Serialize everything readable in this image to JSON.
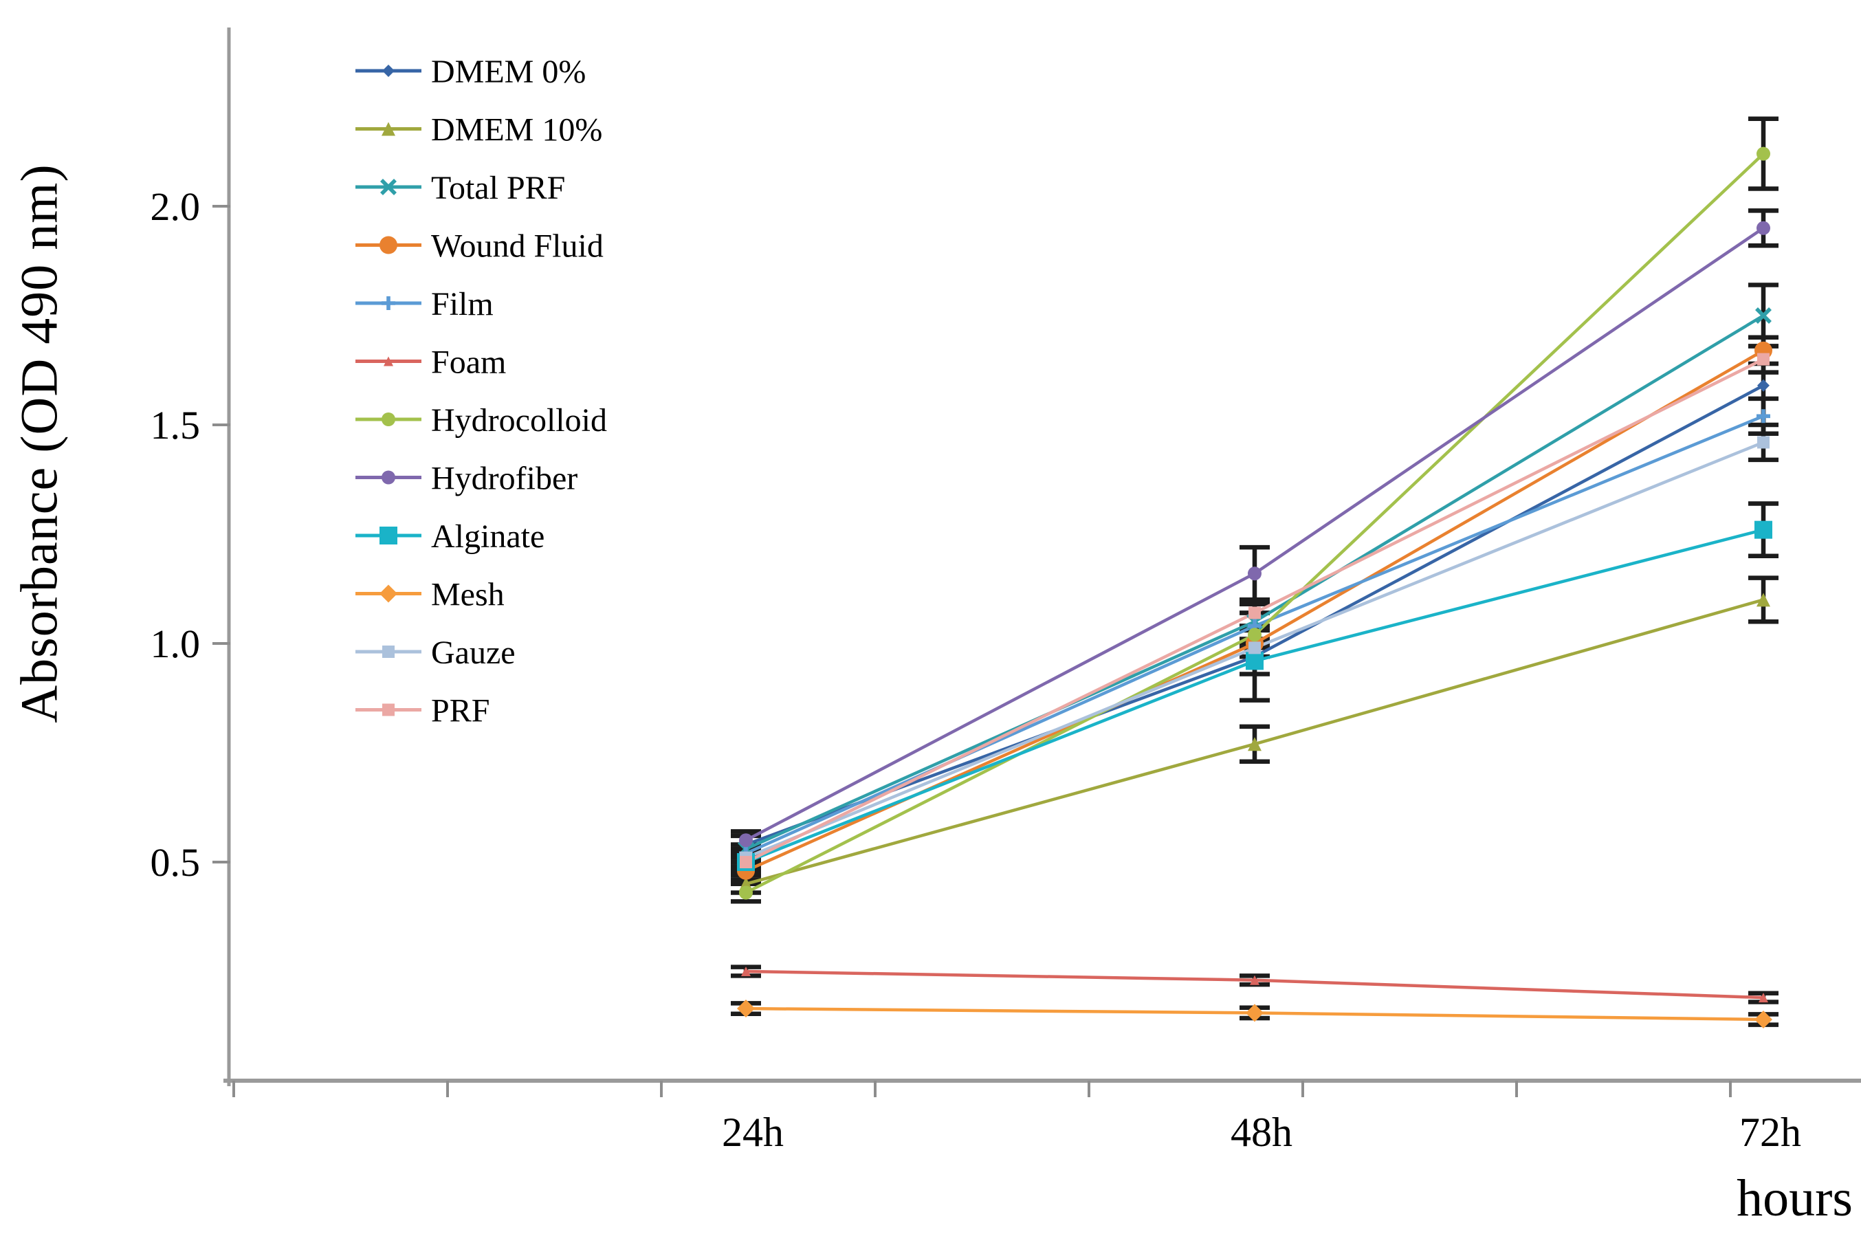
{
  "chart_data": {
    "type": "line",
    "title": "",
    "xlabel": "hours",
    "ylabel": "Absorbance (OD 490 nm)",
    "categories": [
      "24h",
      "48h",
      "72h"
    ],
    "yticks": [
      0.5,
      1.0,
      1.5,
      2.0
    ],
    "ylim": [
      0,
      2.4
    ],
    "grid": false,
    "legend_position": "upper-left-inside",
    "error_bar_color": "#1c1c1c",
    "axis_color": "#9a9a9a",
    "series": [
      {
        "name": "DMEM 0%",
        "color": "#3765a6",
        "marker": "diamond",
        "marker_size": 18,
        "values": [
          0.54,
          0.97,
          1.59
        ],
        "err": [
          0.03,
          0.1,
          0.11
        ]
      },
      {
        "name": "DMEM 10%",
        "color": "#a0a83e",
        "marker": "triangle",
        "marker_size": 20,
        "values": [
          0.45,
          0.77,
          1.1
        ],
        "err": [
          0.02,
          0.04,
          0.05
        ]
      },
      {
        "name": "Total PRF",
        "color": "#2f9fa9",
        "marker": "x",
        "marker_size": 20,
        "values": [
          0.53,
          1.05,
          1.75
        ],
        "err": [
          0.03,
          0.04,
          0.07
        ]
      },
      {
        "name": "Wound Fluid",
        "color": "#e9812f",
        "marker": "circle",
        "marker_size": 26,
        "values": [
          0.48,
          1.0,
          1.67
        ],
        "err": [
          0.02,
          0.03,
          0.03
        ]
      },
      {
        "name": "Film",
        "color": "#5b9bd5",
        "marker": "plus",
        "marker_size": 20,
        "values": [
          0.52,
          1.04,
          1.52
        ],
        "err": [
          0.02,
          0.03,
          0.04
        ]
      },
      {
        "name": "Foam",
        "color": "#d9655e",
        "marker": "triangle",
        "marker_size": 14,
        "values": [
          0.25,
          0.23,
          0.19
        ],
        "err": [
          0.01,
          0.01,
          0.01
        ]
      },
      {
        "name": "Hydrocolloid",
        "color": "#a3c14c",
        "marker": "circle",
        "marker_size": 20,
        "values": [
          0.43,
          1.02,
          2.12
        ],
        "err": [
          0.02,
          0.02,
          0.08
        ]
      },
      {
        "name": "Hydrofiber",
        "color": "#7f68ad",
        "marker": "circle",
        "marker_size": 20,
        "values": [
          0.55,
          1.16,
          1.95
        ],
        "err": [
          0.02,
          0.06,
          0.04
        ]
      },
      {
        "name": "Alginate",
        "color": "#1ab3c8",
        "marker": "square",
        "marker_size": 26,
        "values": [
          0.5,
          0.96,
          1.26
        ],
        "err": [
          0.02,
          0.03,
          0.06
        ]
      },
      {
        "name": "Mesh",
        "color": "#f69c3d",
        "marker": "diamond",
        "marker_size": 26,
        "values": [
          0.165,
          0.155,
          0.14
        ],
        "err": [
          0.012,
          0.012,
          0.012
        ]
      },
      {
        "name": "Gauze",
        "color": "#abc1dc",
        "marker": "square",
        "marker_size": 18,
        "values": [
          0.51,
          0.99,
          1.46
        ],
        "err": [
          0.02,
          0.02,
          0.04
        ]
      },
      {
        "name": "PRF",
        "color": "#eba8a4",
        "marker": "square",
        "marker_size": 18,
        "values": [
          0.5,
          1.07,
          1.65
        ],
        "err": [
          0.02,
          0.03,
          0.03
        ]
      }
    ]
  }
}
